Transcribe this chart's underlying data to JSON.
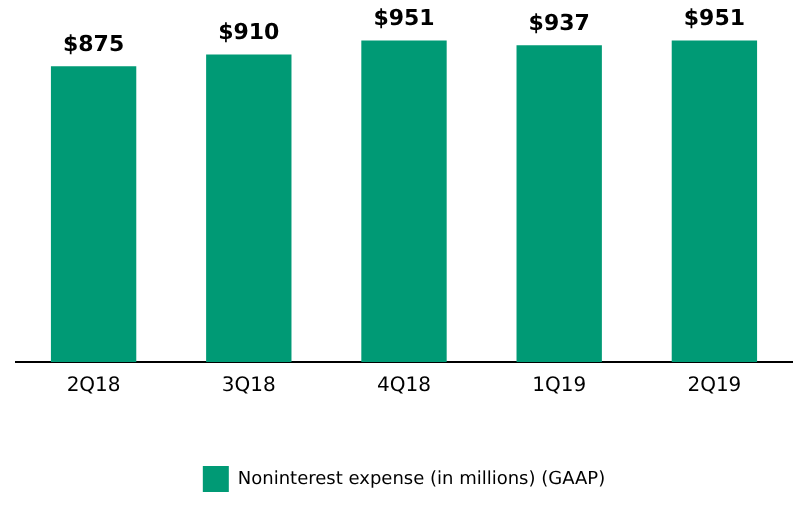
{
  "chart_data": {
    "type": "bar",
    "categories": [
      "2Q18",
      "3Q18",
      "4Q18",
      "1Q19",
      "2Q19"
    ],
    "legend": "bottom",
    "series": [
      {
        "name": "Noninterest expense (in millions) (GAAP)",
        "color": "#009a75",
        "values": [
          875,
          910,
          951,
          937,
          951
        ],
        "value_labels": [
          "$875",
          "$910",
          "$951",
          "$937",
          "$951"
        ]
      }
    ]
  }
}
